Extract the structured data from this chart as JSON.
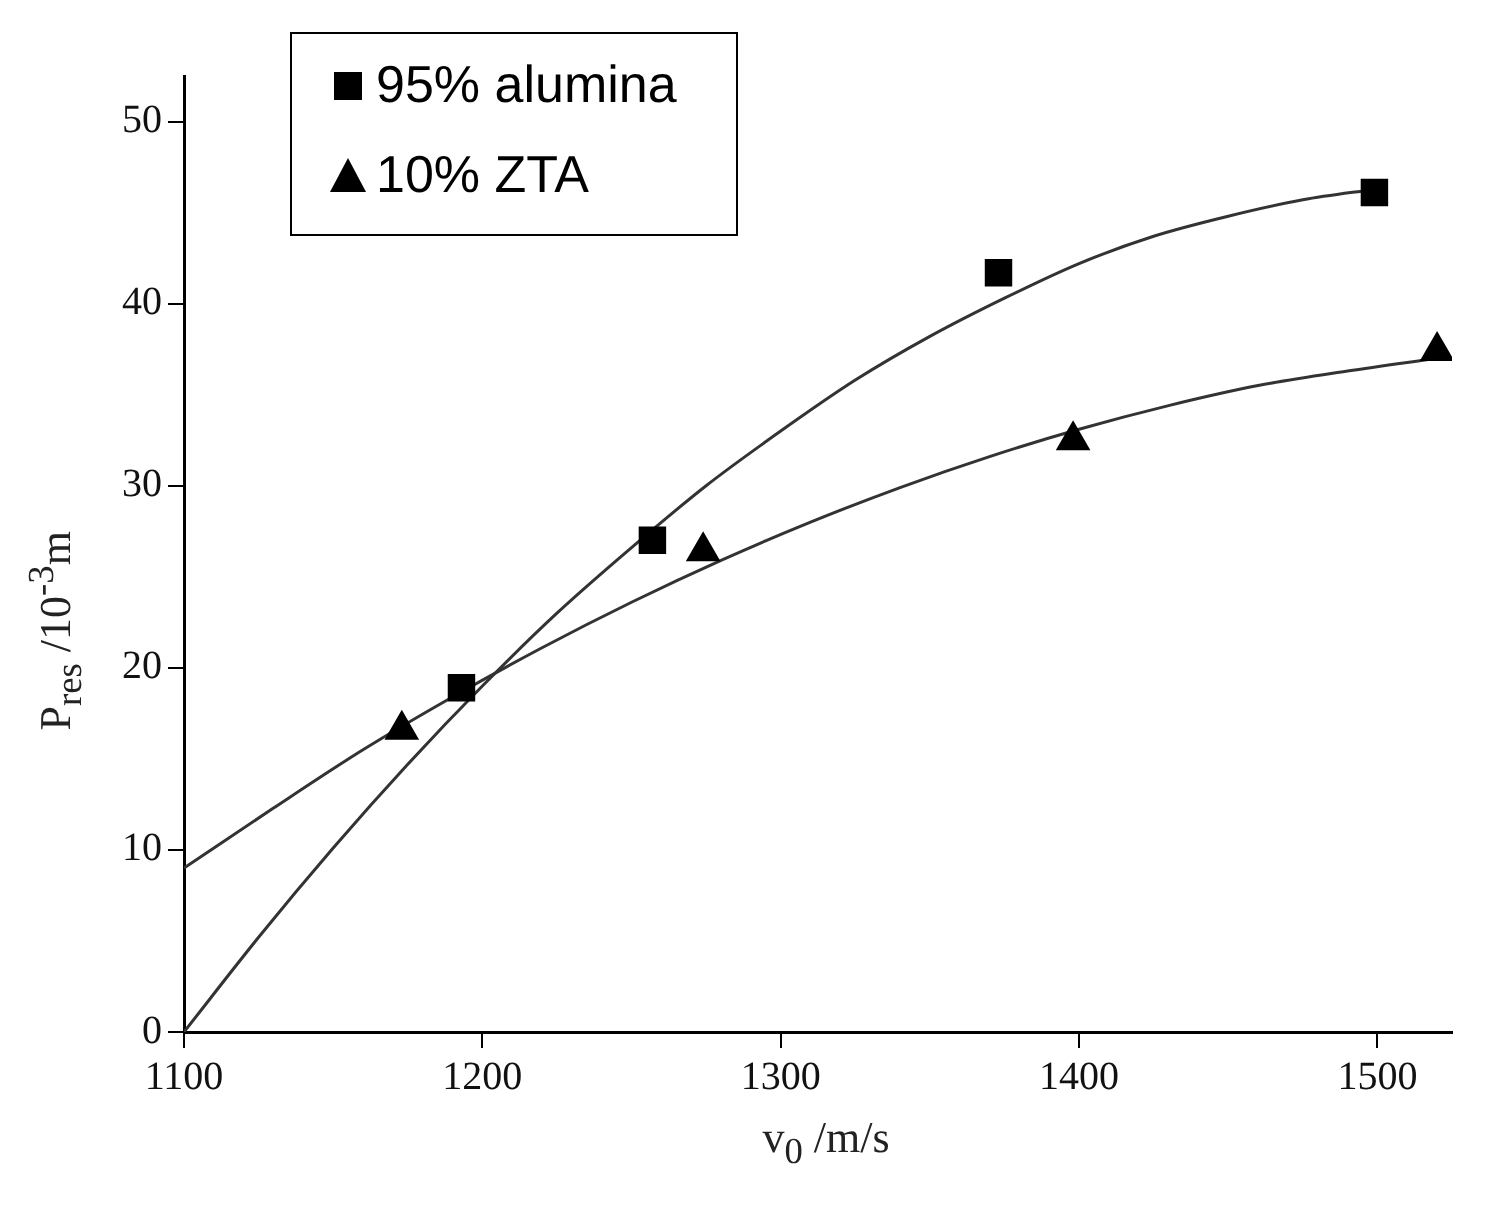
{
  "chart_data": {
    "type": "scatter",
    "xlabel": "v$_{0}$ /m/s",
    "ylabel": "P$_{res}$ /10$^{-3}$m",
    "xlim": [
      1100,
      1525
    ],
    "ylim": [
      0,
      52.5
    ],
    "xticks": [
      1100,
      1200,
      1300,
      1400,
      1500
    ],
    "yticks": [
      0,
      10,
      20,
      30,
      40,
      50
    ],
    "grid": false,
    "legend": "top left",
    "series": [
      {
        "name": "95% alumina",
        "type": "scatter",
        "marker": "square",
        "color": "#000000",
        "x": [
          1193,
          1257,
          1373,
          1499
        ],
        "values": [
          18.9,
          27.0,
          41.7,
          46.1
        ]
      },
      {
        "name": "10% ZTA",
        "type": "scatter",
        "marker": "triangle",
        "color": "#000000",
        "x": [
          1173,
          1274,
          1398,
          1520
        ],
        "values": [
          16.6,
          26.4,
          32.5,
          37.4
        ]
      },
      {
        "type": "line",
        "marker": "none",
        "color": "#333333",
        "x": [
          1100,
          1125,
          1150,
          1175,
          1200,
          1225,
          1250,
          1275,
          1300,
          1325,
          1350,
          1375,
          1400,
          1425,
          1450,
          1475,
          1500
        ],
        "values": [
          0,
          5.2,
          10.1,
          14.7,
          19.0,
          23.0,
          26.6,
          30.0,
          33.0,
          35.8,
          38.2,
          40.3,
          42.2,
          43.7,
          44.8,
          45.7,
          46.3
        ]
      },
      {
        "type": "line",
        "marker": "none",
        "color": "#333333",
        "x": [
          1100,
          1130,
          1160,
          1190,
          1220,
          1250,
          1280,
          1310,
          1340,
          1370,
          1400,
          1430,
          1460,
          1490,
          1520
        ],
        "values": [
          9,
          12.3,
          15.5,
          18.4,
          21.1,
          23.6,
          25.9,
          28.0,
          29.9,
          31.6,
          33.1,
          34.4,
          35.5,
          36.3,
          37.0
        ]
      }
    ]
  }
}
